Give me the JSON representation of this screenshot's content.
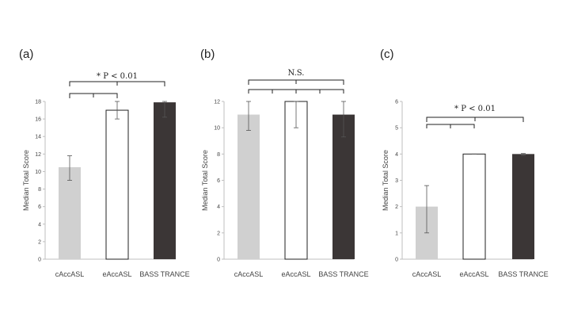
{
  "chart_data": [
    {
      "type": "bar",
      "panel": "(a)",
      "ylabel": "Median Total Score",
      "ylim": [
        0,
        18
      ],
      "yticks": [
        0,
        2,
        4,
        6,
        8,
        10,
        12,
        14,
        16,
        18
      ],
      "categories": [
        "cAccASL",
        "eAccASL",
        "BASS TRANCE"
      ],
      "values": [
        10.5,
        17,
        17.9
      ],
      "error_low": [
        9.0,
        16.0,
        16.2
      ],
      "error_high": [
        11.8,
        18.0,
        18.0
      ],
      "colors": [
        "#d0d0d0",
        "#ffffff",
        "#3b3636"
      ],
      "significance": {
        "label": "* P < 0.01",
        "brackets": [
          [
            0,
            1
          ],
          [
            0,
            2
          ]
        ]
      }
    },
    {
      "type": "bar",
      "panel": "(b)",
      "ylabel": "Median Total Score",
      "ylim": [
        0,
        12
      ],
      "yticks": [
        0,
        2,
        4,
        6,
        8,
        10,
        12
      ],
      "categories": [
        "cAccASL",
        "eAccASL",
        "BASS TRANCE"
      ],
      "values": [
        11,
        12,
        11
      ],
      "error_low": [
        9.8,
        10.0,
        9.3
      ],
      "error_high": [
        12.0,
        12.0,
        12.0
      ],
      "colors": [
        "#d0d0d0",
        "#ffffff",
        "#3b3636"
      ],
      "significance": {
        "label": "N.S.",
        "brackets": [
          [
            0,
            1
          ],
          [
            1,
            2
          ],
          [
            0,
            2
          ]
        ]
      }
    },
    {
      "type": "bar",
      "panel": "(c)",
      "ylabel": "Median Total Score",
      "ylim": [
        0,
        6
      ],
      "yticks": [
        0,
        1,
        2,
        3,
        4,
        5,
        6
      ],
      "categories": [
        "cAccASL",
        "eAccASL",
        "BASS TRANCE"
      ],
      "values": [
        2,
        4,
        4
      ],
      "error_low": [
        1.0,
        4.0,
        3.95
      ],
      "error_high": [
        2.8,
        4.0,
        4.02
      ],
      "colors": [
        "#d0d0d0",
        "#ffffff",
        "#3b3636"
      ],
      "significance": {
        "label": "* P < 0.01",
        "brackets": [
          [
            0,
            1
          ],
          [
            0,
            2
          ]
        ]
      }
    }
  ]
}
